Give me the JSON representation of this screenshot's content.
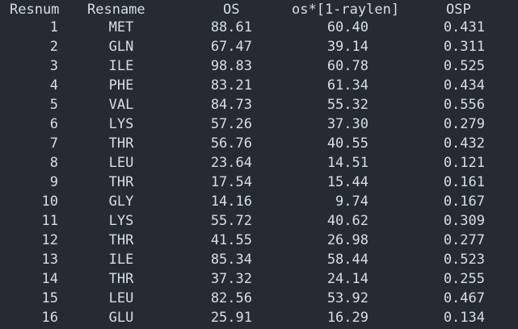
{
  "table": {
    "headers": [
      "Resnum",
      "Resname",
      "OS",
      "os*[1-raylen]",
      "OSP"
    ],
    "rows": [
      [
        "1",
        "MET",
        "88.61",
        "60.40",
        "0.431"
      ],
      [
        "2",
        "GLN",
        "67.47",
        "39.14",
        "0.311"
      ],
      [
        "3",
        "ILE",
        "98.83",
        "60.78",
        "0.525"
      ],
      [
        "4",
        "PHE",
        "83.21",
        "61.34",
        "0.434"
      ],
      [
        "5",
        "VAL",
        "84.73",
        "55.32",
        "0.556"
      ],
      [
        "6",
        "LYS",
        "57.26",
        "37.30",
        "0.279"
      ],
      [
        "7",
        "THR",
        "56.76",
        "40.55",
        "0.432"
      ],
      [
        "8",
        "LEU",
        "23.64",
        "14.51",
        "0.121"
      ],
      [
        "9",
        "THR",
        "17.54",
        "15.44",
        "0.161"
      ],
      [
        "10",
        "GLY",
        "14.16",
        "9.74",
        "0.167"
      ],
      [
        "11",
        "LYS",
        "55.72",
        "40.62",
        "0.309"
      ],
      [
        "12",
        "THR",
        "41.55",
        "26.98",
        "0.277"
      ],
      [
        "13",
        "ILE",
        "85.34",
        "58.44",
        "0.523"
      ],
      [
        "14",
        "THR",
        "37.32",
        "24.14",
        "0.255"
      ],
      [
        "15",
        "LEU",
        "82.56",
        "53.92",
        "0.467"
      ],
      [
        "16",
        "GLU",
        "25.91",
        "16.29",
        "0.134"
      ]
    ]
  }
}
